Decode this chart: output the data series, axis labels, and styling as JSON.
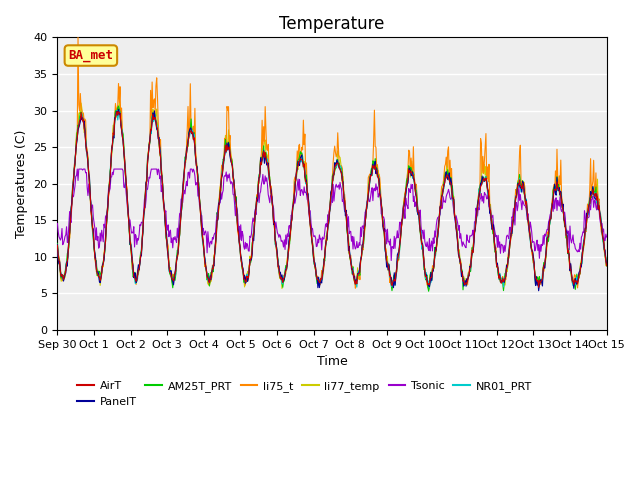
{
  "title": "Temperature",
  "ylabel": "Temperatures (C)",
  "xlabel": "Time",
  "ylim": [
    0,
    40
  ],
  "yticks": [
    0,
    5,
    10,
    15,
    20,
    25,
    30,
    35,
    40
  ],
  "xlabels": [
    "Sep 30",
    "Oct 1",
    "Oct 2",
    "Oct 3",
    "Oct 4",
    "Oct 5",
    "Oct 6",
    "Oct 7",
    "Oct 8",
    "Oct 9",
    "Oct 10",
    "Oct 11",
    "Oct 12",
    "Oct 13",
    "Oct 14",
    "Oct 15"
  ],
  "legend": [
    {
      "label": "AirT",
      "color": "#cc0000"
    },
    {
      "label": "PanelT",
      "color": "#000099"
    },
    {
      "label": "AM25T_PRT",
      "color": "#00cc00"
    },
    {
      "label": "li75_t",
      "color": "#ff8800"
    },
    {
      "label": "li77_temp",
      "color": "#cccc00"
    },
    {
      "label": "Tsonic",
      "color": "#9900cc"
    },
    {
      "label": "NR01_PRT",
      "color": "#00cccc"
    }
  ],
  "annotation": "BA_met",
  "annotation_color": "#cc0000",
  "annotation_bg": "#ffff99",
  "annotation_border": "#cc8800",
  "background_color": "#eeeeee",
  "figure_bg": "#ffffff",
  "grid_color": "#ffffff",
  "title_fontsize": 12,
  "label_fontsize": 9,
  "tick_fontsize": 8,
  "seed": 42,
  "n_days": 15,
  "points_per_day": 48
}
